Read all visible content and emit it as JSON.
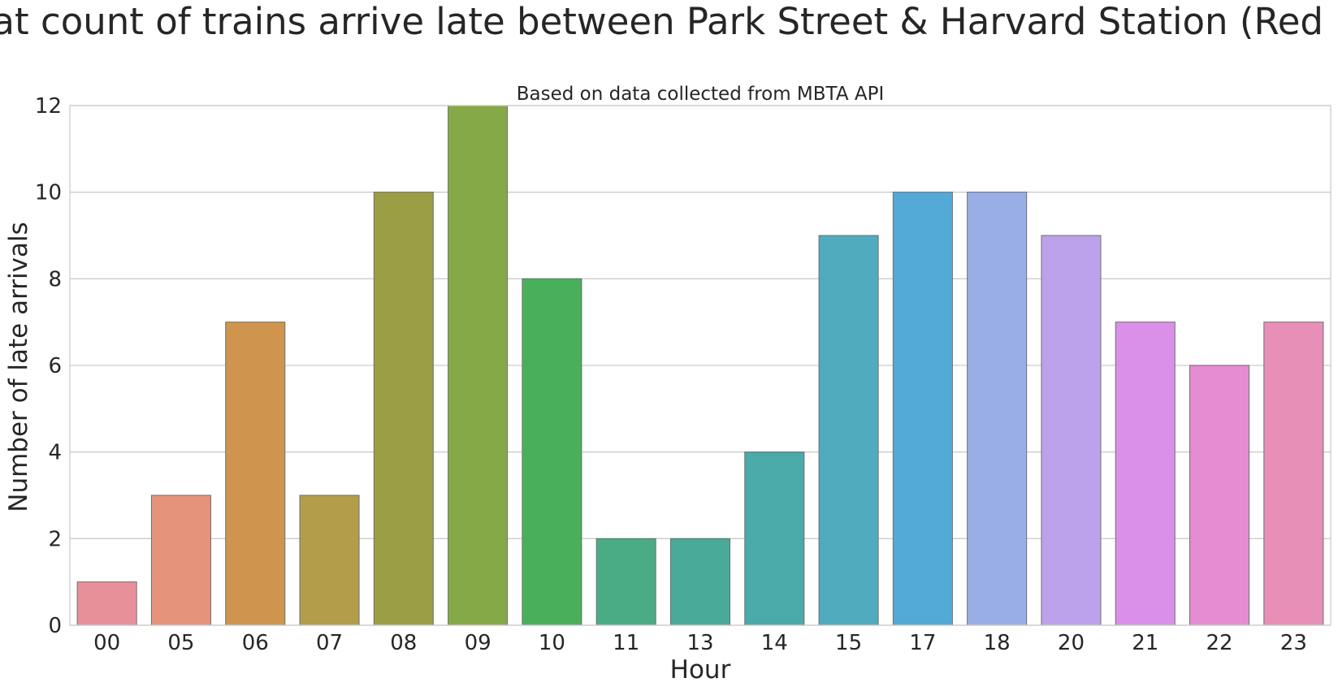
{
  "chart_data": {
    "type": "bar",
    "title": "What count of trains arrive late between Park Street & Harvard Station (Red Line)",
    "subtitle": "Based on data collected from MBTA API",
    "xlabel": "Hour",
    "ylabel": "Number of late arrivals",
    "categories": [
      "00",
      "05",
      "06",
      "07",
      "08",
      "09",
      "10",
      "11",
      "13",
      "14",
      "15",
      "17",
      "18",
      "20",
      "21",
      "22",
      "23"
    ],
    "values": [
      1,
      3,
      7,
      3,
      10,
      12,
      8,
      2,
      2,
      4,
      9,
      10,
      10,
      9,
      7,
      6,
      7
    ],
    "colors": [
      "#e8909a",
      "#e5937a",
      "#cf954e",
      "#b39c4a",
      "#9c9e45",
      "#86a948",
      "#4aaf5a",
      "#4aac84",
      "#4aaa9a",
      "#4aa9a9",
      "#51abbf",
      "#54aad6",
      "#9aaee6",
      "#bca2ea",
      "#da90e9",
      "#e58cd3",
      "#e88fb8"
    ],
    "ylim": [
      0,
      12
    ],
    "yticks": [
      0,
      2,
      4,
      6,
      8,
      10,
      12
    ],
    "grid": true,
    "legend": "none"
  }
}
